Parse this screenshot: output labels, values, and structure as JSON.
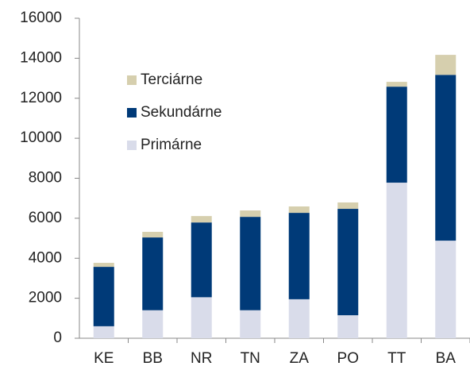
{
  "chart_data": {
    "type": "stacked_bar",
    "categories": [
      "KE",
      "BB",
      "NR",
      "TN",
      "ZA",
      "PO",
      "TT",
      "BA"
    ],
    "series": [
      {
        "name": "Primárne",
        "color": "#d9dcea",
        "values": [
          600,
          1400,
          2050,
          1400,
          1950,
          1150,
          7780,
          4880
        ]
      },
      {
        "name": "Sekundárne",
        "color": "#003a78",
        "values": [
          2970,
          3640,
          3740,
          4670,
          4320,
          5320,
          4800,
          8290
        ]
      },
      {
        "name": "Terciárne",
        "color": "#d6cfae",
        "values": [
          200,
          280,
          320,
          320,
          320,
          320,
          240,
          1000
        ]
      }
    ],
    "ylim": [
      0,
      16000
    ],
    "yticks": [
      0,
      2000,
      4000,
      6000,
      8000,
      10000,
      12000,
      14000,
      16000
    ],
    "grid": false
  }
}
